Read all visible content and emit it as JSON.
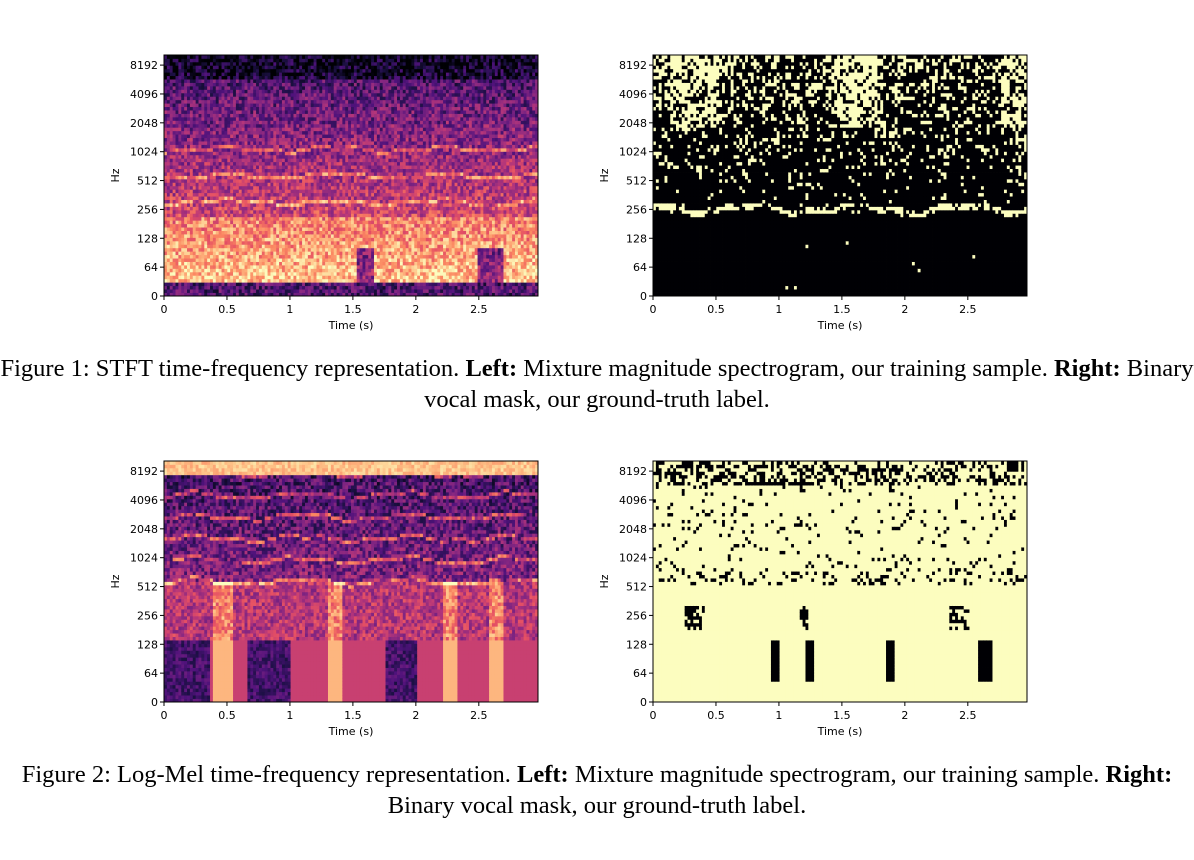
{
  "figures": [
    {
      "caption": {
        "prefix": "Figure 1: STFT time-frequency representation. ",
        "left_label": "Left:",
        "left_text": " Mixture magnitude spectrogram, our training sample. ",
        "right_label": "Right:",
        "right_text": " Binary vocal mask, our ground-truth label."
      },
      "panels": [
        {
          "chart_data": {
            "type": "heatmap",
            "colormap": "magma",
            "xlabel": "Time (s)",
            "ylabel": "Hz",
            "xticks": [
              "0",
              "0.5",
              "1",
              "1.5",
              "2",
              "2.5"
            ],
            "xtick_values": [
              0,
              0.5,
              1,
              1.5,
              2,
              2.5
            ],
            "xlim": [
              0,
              2.97
            ],
            "yticks": [
              "0",
              "64",
              "128",
              "256",
              "512",
              "1024",
              "2048",
              "4096",
              "8192"
            ],
            "variant": "stft-spectrogram"
          }
        },
        {
          "chart_data": {
            "type": "heatmap",
            "colormap": "binary (black / pale yellow)",
            "xlabel": "Time (s)",
            "ylabel": "Hz",
            "xticks": [
              "0",
              "0.5",
              "1",
              "1.5",
              "2",
              "2.5"
            ],
            "xtick_values": [
              0,
              0.5,
              1,
              1.5,
              2,
              2.5
            ],
            "xlim": [
              0,
              2.97
            ],
            "yticks": [
              "0",
              "64",
              "128",
              "256",
              "512",
              "1024",
              "2048",
              "4096",
              "8192"
            ],
            "variant": "stft-mask"
          }
        }
      ]
    },
    {
      "caption": {
        "prefix": "Figure 2: Log-Mel time-frequency representation. ",
        "left_label": "Left:",
        "left_text": " Mixture magnitude spectrogram, our training sample. ",
        "right_label": "Right:",
        "right_text": " Binary vocal mask, our ground-truth label."
      },
      "panels": [
        {
          "chart_data": {
            "type": "heatmap",
            "colormap": "magma",
            "xlabel": "Time (s)",
            "ylabel": "Hz",
            "xticks": [
              "0",
              "0.5",
              "1",
              "1.5",
              "2",
              "2.5"
            ],
            "xtick_values": [
              0,
              0.5,
              1,
              1.5,
              2,
              2.5
            ],
            "xlim": [
              0,
              2.97
            ],
            "yticks": [
              "0",
              "64",
              "128",
              "256",
              "512",
              "1024",
              "2048",
              "4096",
              "8192"
            ],
            "variant": "mel-spectrogram"
          }
        },
        {
          "chart_data": {
            "type": "heatmap",
            "colormap": "binary (black / pale yellow)",
            "xlabel": "Time (s)",
            "ylabel": "Hz",
            "xticks": [
              "0",
              "0.5",
              "1",
              "1.5",
              "2",
              "2.5"
            ],
            "xtick_values": [
              0,
              0.5,
              1,
              1.5,
              2,
              2.5
            ],
            "xlim": [
              0,
              2.97
            ],
            "yticks": [
              "0",
              "64",
              "128",
              "256",
              "512",
              "1024",
              "2048",
              "4096",
              "8192"
            ],
            "variant": "mel-mask"
          }
        }
      ]
    }
  ]
}
